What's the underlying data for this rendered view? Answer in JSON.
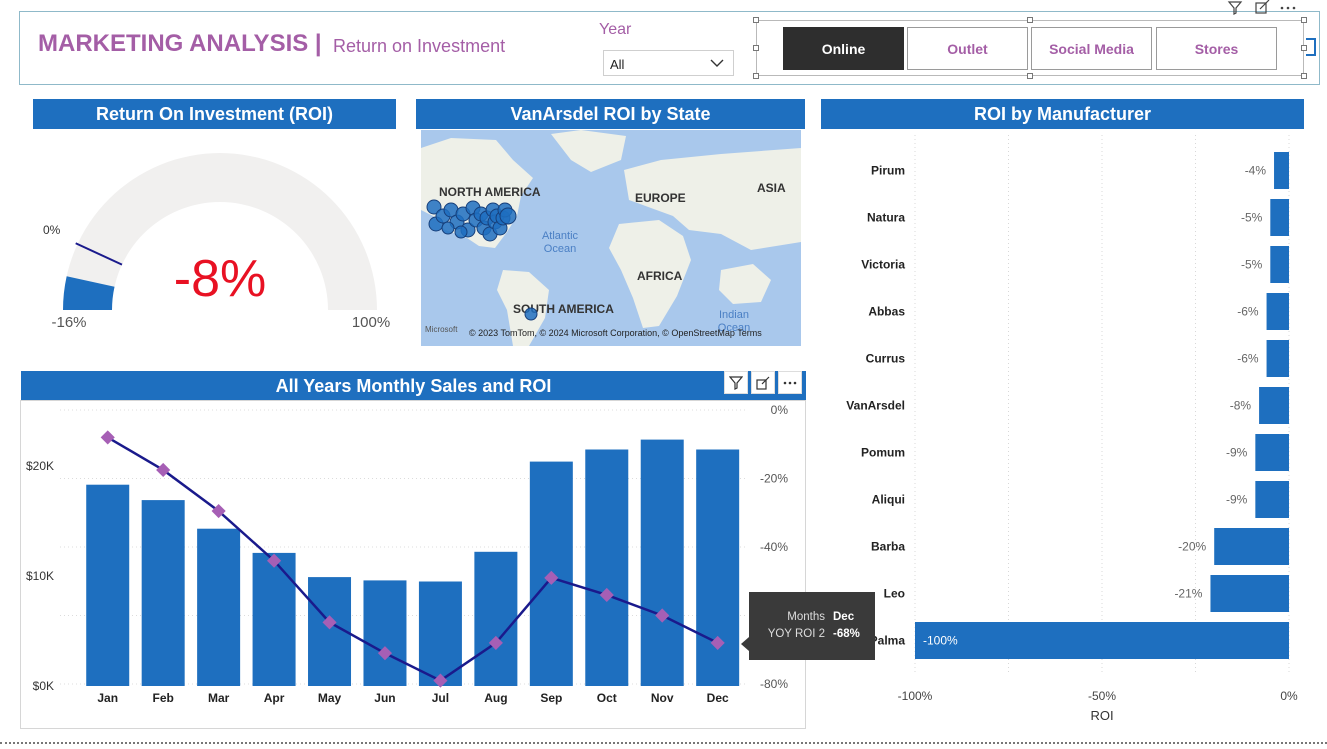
{
  "header": {
    "title": "MARKETING ANALYSIS |",
    "subtitle": "Return on Investment",
    "year_label": "Year",
    "year_value": "All",
    "channels": [
      "Online",
      "Outlet",
      "Social Media",
      "Stores"
    ],
    "selected_channel": "Online",
    "top_icons": [
      "filter-icon",
      "expand-icon",
      "more-icon"
    ]
  },
  "gauge": {
    "title": "Return On Investment (ROI)",
    "value_label": "-8%",
    "min_label": "-16%",
    "max_label": "100%",
    "target_label": "0%",
    "value": -8,
    "min": -16,
    "max": 100,
    "target": 0,
    "colors": {
      "fill": "#1e6fbf",
      "track": "#f1f0ef",
      "value_text": "#e81123",
      "target": "#1a1a8c"
    }
  },
  "map": {
    "title": "VanArsdel ROI by State",
    "labels": [
      "NORTH AMERICA",
      "EUROPE",
      "ASIA",
      "AFRICA",
      "SOUTH AMERICA"
    ],
    "oceans": [
      "Atlantic Ocean",
      "Indian Ocean"
    ],
    "attribution": "Microsoft",
    "credit": "© 2023 TomTom, © 2024 Microsoft Corporation, © OpenStreetMap  Terms"
  },
  "chart_data": [
    {
      "type": "bar",
      "title": "All Years Monthly Sales and ROI",
      "categories": [
        "Jan",
        "Feb",
        "Mar",
        "Apr",
        "May",
        "Jun",
        "Jul",
        "Aug",
        "Sep",
        "Oct",
        "Nov",
        "Dec"
      ],
      "series": [
        {
          "name": "Sales",
          "axis": "left",
          "type": "bar",
          "color": "#1e6fbf",
          "values": [
            18300,
            16900,
            14300,
            12100,
            9900,
            9600,
            9500,
            12200,
            20400,
            21500,
            22400,
            21500
          ]
        },
        {
          "name": "YOY ROI 2",
          "axis": "right",
          "type": "line",
          "color": "#1a1a8c",
          "marker_color": "#a65fb5",
          "values": [
            -8,
            -17.5,
            -29.5,
            -44,
            -62,
            -71,
            -79,
            -68,
            -49,
            -54,
            -60,
            -68
          ]
        }
      ],
      "left_axis": {
        "ticks": [
          "$0K",
          "$10K",
          "$20K"
        ],
        "tick_values": [
          0,
          10000,
          20000
        ],
        "range": [
          0,
          25000
        ]
      },
      "right_axis": {
        "ticks": [
          "0%",
          "-20%",
          "-40%",
          "-60%",
          "-80%"
        ],
        "tick_values": [
          0,
          -20,
          -40,
          -60,
          -80
        ],
        "range": [
          -80,
          0
        ]
      },
      "tooltip": {
        "months_key": "Months",
        "months_value": "Dec",
        "metric_key": "YOY ROI 2",
        "metric_value": "-68%"
      }
    },
    {
      "type": "bar",
      "orientation": "horizontal",
      "title": "ROI by Manufacturer",
      "xlabel": "ROI",
      "categories": [
        "Pirum",
        "Natura",
        "Victoria",
        "Abbas",
        "Currus",
        "VanArsdel",
        "Pomum",
        "Aliqui",
        "Barba",
        "Leo",
        "Palma"
      ],
      "values": [
        -4,
        -5,
        -5,
        -6,
        -6,
        -8,
        -9,
        -9,
        -20,
        -21,
        -100
      ],
      "value_labels": [
        "-4%",
        "-5%",
        "-5%",
        "-6%",
        "-6%",
        "-8%",
        "-9%",
        "-9%",
        "-20%",
        "-21%",
        "-100%"
      ],
      "xlim": [
        -100,
        0
      ],
      "x_ticks": [
        "-100%",
        "-50%",
        "0%"
      ],
      "x_tick_values": [
        -100,
        -50,
        0
      ],
      "color": "#1e6fbf"
    }
  ]
}
